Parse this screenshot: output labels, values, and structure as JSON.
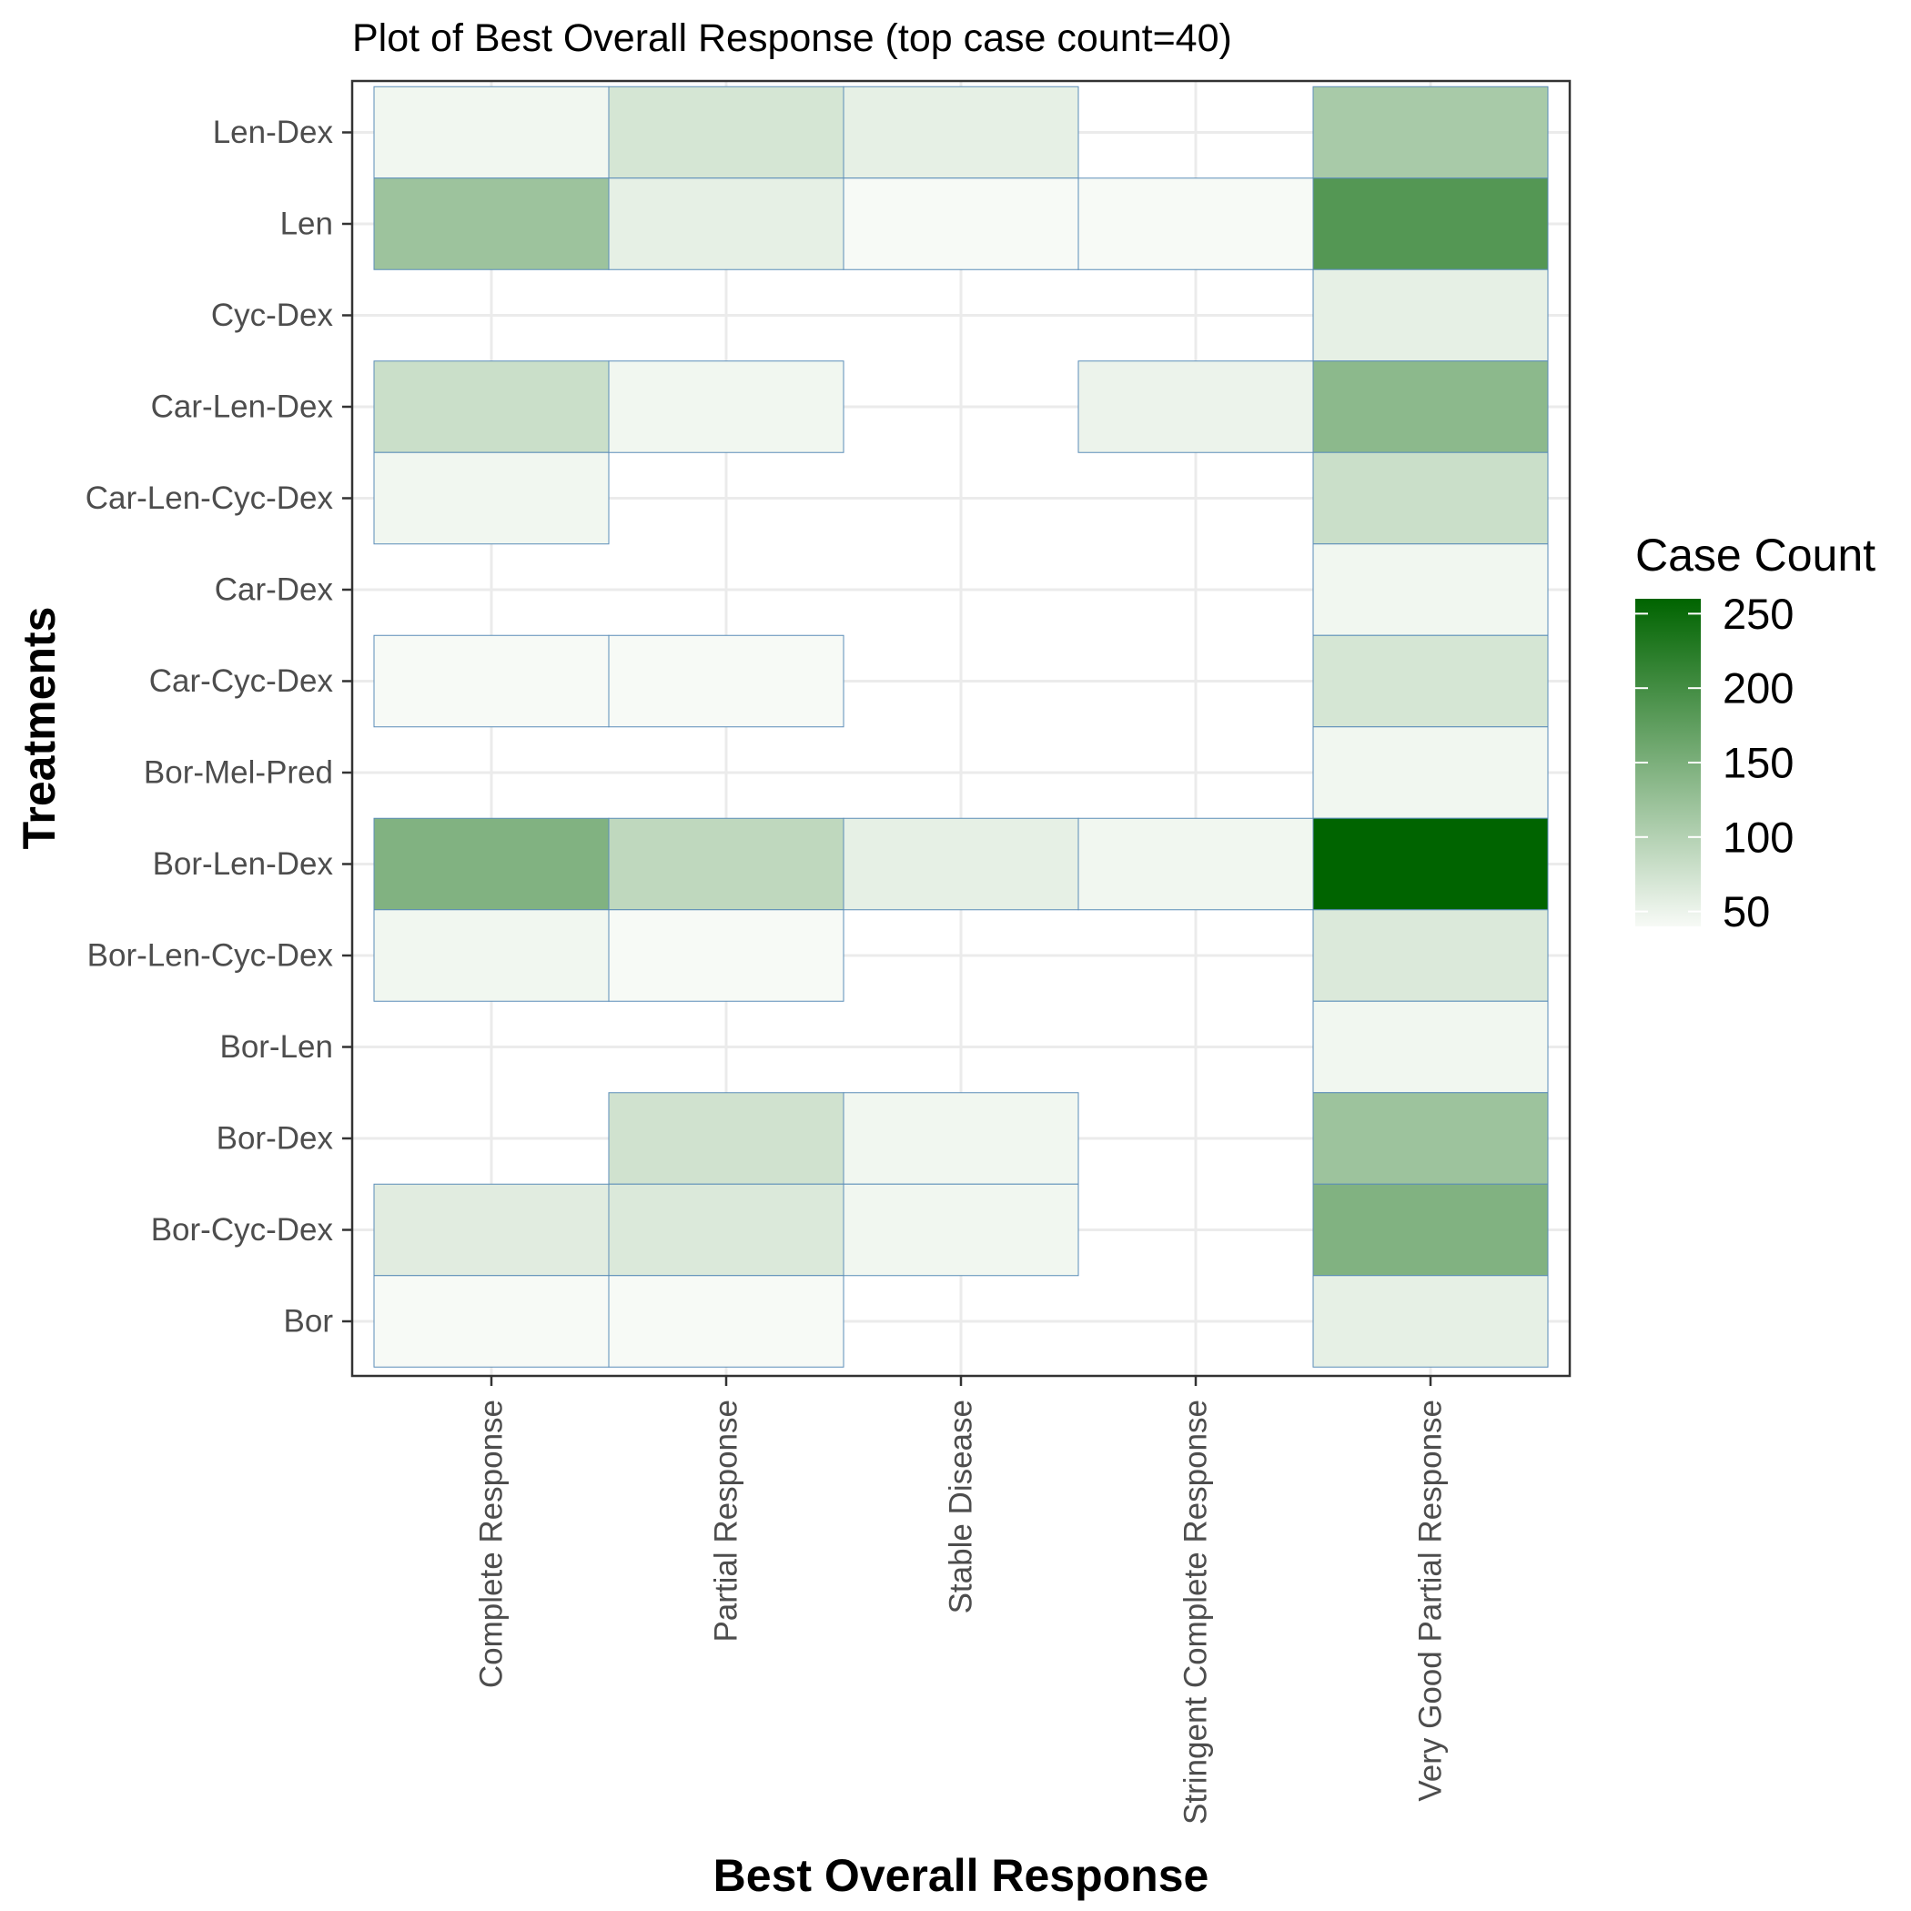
{
  "chart_data": {
    "type": "heatmap",
    "title": "Plot of Best Overall Response (top case count=40)",
    "xlabel": "Best Overall Response",
    "ylabel": "Treatments",
    "x_categories": [
      "Complete Response",
      "Partial Response",
      "Stable Disease",
      "Stringent Complete Response",
      "Very Good Partial Response"
    ],
    "y_categories": [
      "Bor",
      "Bor-Cyc-Dex",
      "Bor-Dex",
      "Bor-Len",
      "Bor-Len-Cyc-Dex",
      "Bor-Len-Dex",
      "Bor-Mel-Pred",
      "Car-Cyc-Dex",
      "Car-Dex",
      "Car-Len-Cyc-Dex",
      "Car-Len-Dex",
      "Cyc-Dex",
      "Len",
      "Len-Dex"
    ],
    "cells": [
      {
        "y": "Len-Dex",
        "x": "Complete Response",
        "value": 45
      },
      {
        "y": "Len-Dex",
        "x": "Partial Response",
        "value": 70
      },
      {
        "y": "Len-Dex",
        "x": "Stable Disease",
        "value": 55
      },
      {
        "y": "Len-Dex",
        "x": "Very Good Partial Response",
        "value": 110
      },
      {
        "y": "Len",
        "x": "Complete Response",
        "value": 120
      },
      {
        "y": "Len",
        "x": "Partial Response",
        "value": 55
      },
      {
        "y": "Len",
        "x": "Stable Disease",
        "value": 40
      },
      {
        "y": "Len",
        "x": "Stringent Complete Response",
        "value": 40
      },
      {
        "y": "Len",
        "x": "Very Good Partial Response",
        "value": 185
      },
      {
        "y": "Cyc-Dex",
        "x": "Very Good Partial Response",
        "value": 55
      },
      {
        "y": "Car-Len-Dex",
        "x": "Complete Response",
        "value": 80
      },
      {
        "y": "Car-Len-Dex",
        "x": "Partial Response",
        "value": 45
      },
      {
        "y": "Car-Len-Dex",
        "x": "Stringent Complete Response",
        "value": 50
      },
      {
        "y": "Car-Len-Dex",
        "x": "Very Good Partial Response",
        "value": 135
      },
      {
        "y": "Car-Len-Cyc-Dex",
        "x": "Complete Response",
        "value": 45
      },
      {
        "y": "Car-Len-Cyc-Dex",
        "x": "Very Good Partial Response",
        "value": 80
      },
      {
        "y": "Car-Dex",
        "x": "Very Good Partial Response",
        "value": 45
      },
      {
        "y": "Car-Cyc-Dex",
        "x": "Complete Response",
        "value": 40
      },
      {
        "y": "Car-Cyc-Dex",
        "x": "Partial Response",
        "value": 40
      },
      {
        "y": "Car-Cyc-Dex",
        "x": "Very Good Partial Response",
        "value": 70
      },
      {
        "y": "Bor-Mel-Pred",
        "x": "Very Good Partial Response",
        "value": 45
      },
      {
        "y": "Bor-Len-Dex",
        "x": "Complete Response",
        "value": 145
      },
      {
        "y": "Bor-Len-Dex",
        "x": "Partial Response",
        "value": 90
      },
      {
        "y": "Bor-Len-Dex",
        "x": "Stable Disease",
        "value": 55
      },
      {
        "y": "Bor-Len-Dex",
        "x": "Stringent Complete Response",
        "value": 45
      },
      {
        "y": "Bor-Len-Dex",
        "x": "Very Good Partial Response",
        "value": 260
      },
      {
        "y": "Bor-Len-Cyc-Dex",
        "x": "Complete Response",
        "value": 45
      },
      {
        "y": "Bor-Len-Cyc-Dex",
        "x": "Partial Response",
        "value": 40
      },
      {
        "y": "Bor-Len-Cyc-Dex",
        "x": "Very Good Partial Response",
        "value": 65
      },
      {
        "y": "Bor-Len",
        "x": "Very Good Partial Response",
        "value": 45
      },
      {
        "y": "Bor-Dex",
        "x": "Partial Response",
        "value": 75
      },
      {
        "y": "Bor-Dex",
        "x": "Stable Disease",
        "value": 45
      },
      {
        "y": "Bor-Dex",
        "x": "Very Good Partial Response",
        "value": 120
      },
      {
        "y": "Bor-Cyc-Dex",
        "x": "Complete Response",
        "value": 60
      },
      {
        "y": "Bor-Cyc-Dex",
        "x": "Partial Response",
        "value": 65
      },
      {
        "y": "Bor-Cyc-Dex",
        "x": "Stable Disease",
        "value": 45
      },
      {
        "y": "Bor-Cyc-Dex",
        "x": "Very Good Partial Response",
        "value": 145
      },
      {
        "y": "Bor",
        "x": "Complete Response",
        "value": 40
      },
      {
        "y": "Bor",
        "x": "Partial Response",
        "value": 40
      },
      {
        "y": "Bor",
        "x": "Very Good Partial Response",
        "value": 55
      }
    ],
    "legend": {
      "title": "Case Count",
      "ticks": [
        50,
        100,
        150,
        200,
        250
      ],
      "placement": "right",
      "low_color": "#f7faf6",
      "high_color": "#006400"
    },
    "value_range": [
      40,
      260
    ],
    "grid": true,
    "cell_border_color": "#5b8db8"
  }
}
